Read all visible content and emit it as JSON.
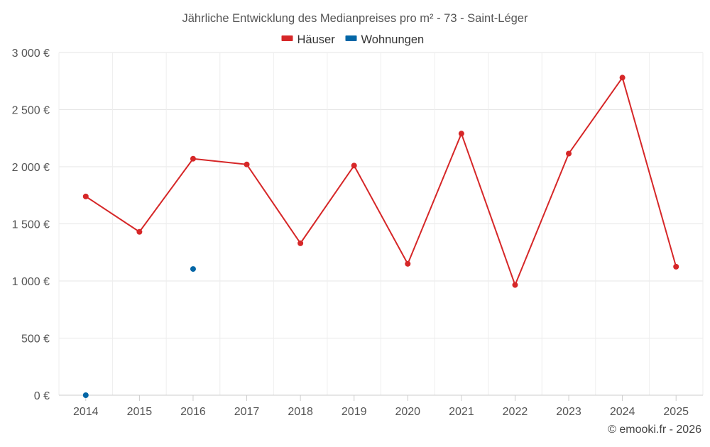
{
  "chart_data": {
    "type": "line",
    "title": "Jährliche Entwicklung des Medianpreises pro m² - 73 - Saint-Léger",
    "xlabel": "",
    "ylabel": "",
    "categories": [
      "2014",
      "2015",
      "2016",
      "2017",
      "2018",
      "2019",
      "2020",
      "2021",
      "2022",
      "2023",
      "2024",
      "2025"
    ],
    "ylim": [
      0,
      3000
    ],
    "yticks": [
      0,
      500,
      1000,
      1500,
      2000,
      2500,
      3000
    ],
    "ytick_labels": [
      "0 €",
      "500 €",
      "1 000 €",
      "1 500 €",
      "2 000 €",
      "2 500 €",
      "3 000 €"
    ],
    "grid": true,
    "legend_position": "top-center",
    "series": [
      {
        "name": "Häuser",
        "color": "#d62728",
        "style": "line-markers",
        "values": [
          1740,
          1430,
          2070,
          2020,
          1330,
          2010,
          1150,
          2290,
          965,
          2115,
          2780,
          1125
        ]
      },
      {
        "name": "Wohnungen",
        "color": "#0366a6",
        "style": "markers",
        "values": [
          0,
          null,
          1105,
          null,
          null,
          null,
          null,
          null,
          null,
          null,
          null,
          null
        ]
      }
    ],
    "credit": "© emooki.fr - 2026"
  }
}
